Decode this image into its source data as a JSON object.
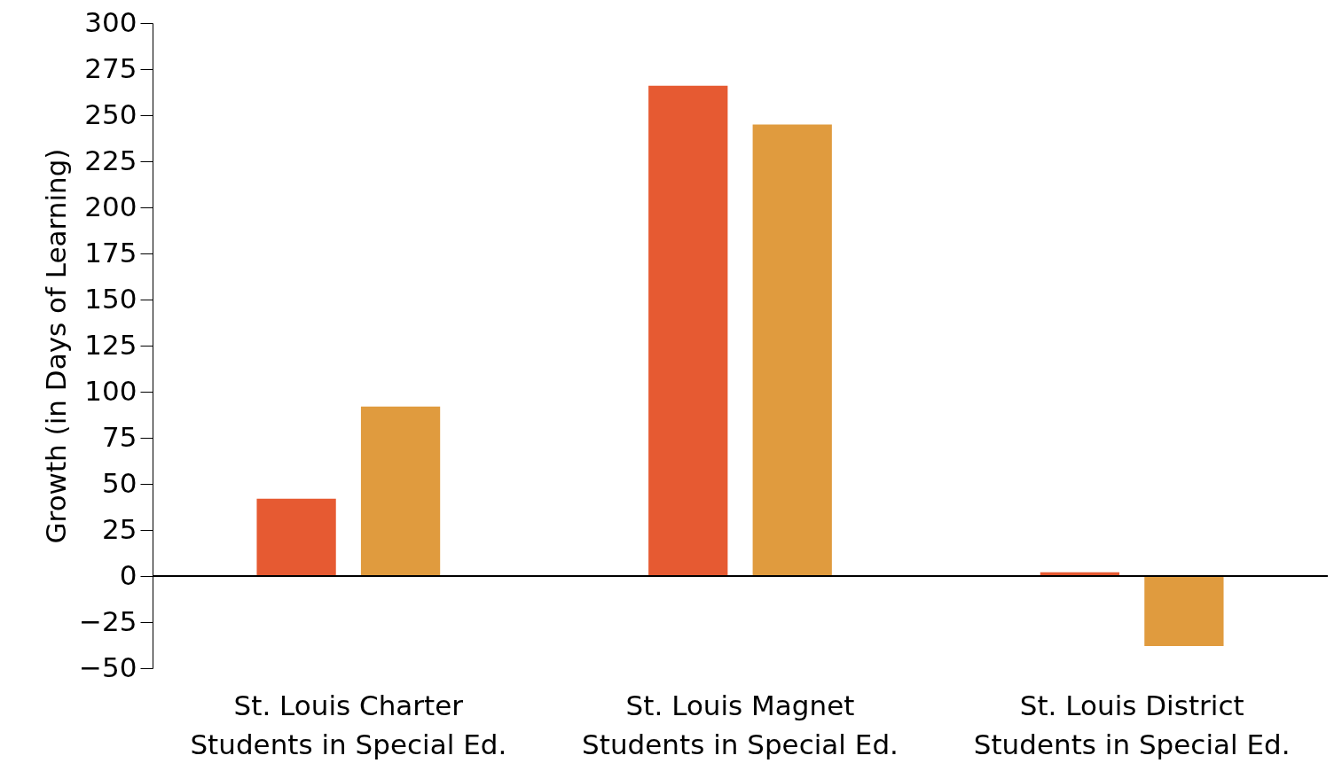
{
  "chart_data": {
    "type": "bar",
    "categories": [
      "St. Louis Charter\nStudents in Special Ed.",
      "St. Louis Magnet\nStudents in Special Ed.",
      "St. Louis District\nStudents in Special Ed."
    ],
    "series": [
      {
        "color": "#e65a32",
        "values": [
          42,
          266,
          2
        ]
      },
      {
        "color": "#e09b3e",
        "values": [
          92,
          245,
          -38
        ]
      }
    ],
    "ylabel": "Growth (in Days of Learning)",
    "ylim": [
      -50,
      300
    ],
    "yticks": [
      -50,
      -25,
      0,
      25,
      50,
      75,
      100,
      125,
      150,
      175,
      200,
      225,
      250,
      275,
      300
    ],
    "legend": false
  }
}
